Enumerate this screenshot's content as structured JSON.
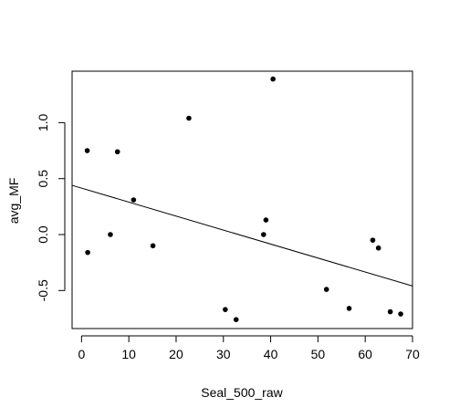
{
  "chart_data": {
    "type": "scatter",
    "title": "",
    "xlabel": "Seal_500_raw",
    "ylabel": "avg_MF",
    "xlim": [
      -2,
      70
    ],
    "ylim": [
      -0.84,
      1.46
    ],
    "x_ticks": [
      0,
      10,
      20,
      30,
      40,
      50,
      60,
      70
    ],
    "y_ticks": [
      -0.5,
      0.0,
      0.5,
      1.0
    ],
    "x_tick_labels": [
      "0",
      "10",
      "20",
      "30",
      "40",
      "50",
      "60",
      "70"
    ],
    "y_tick_labels": [
      "-0.5",
      "0.0",
      "0.5",
      "1.0"
    ],
    "grid": false,
    "points": [
      {
        "x": 1.2,
        "y": 0.75
      },
      {
        "x": 1.3,
        "y": -0.16
      },
      {
        "x": 6.1,
        "y": 0.0
      },
      {
        "x": 7.6,
        "y": 0.74
      },
      {
        "x": 11.0,
        "y": 0.31
      },
      {
        "x": 15.1,
        "y": -0.1
      },
      {
        "x": 22.7,
        "y": 1.04
      },
      {
        "x": 30.4,
        "y": -0.67
      },
      {
        "x": 32.7,
        "y": -0.76
      },
      {
        "x": 38.5,
        "y": 0.0
      },
      {
        "x": 39.0,
        "y": 0.13
      },
      {
        "x": 40.5,
        "y": 1.39
      },
      {
        "x": 51.8,
        "y": -0.49
      },
      {
        "x": 56.6,
        "y": -0.66
      },
      {
        "x": 61.6,
        "y": -0.05
      },
      {
        "x": 62.8,
        "y": -0.12
      },
      {
        "x": 65.3,
        "y": -0.69
      },
      {
        "x": 67.5,
        "y": -0.71
      }
    ],
    "fit_line": {
      "x": [
        -2,
        70
      ],
      "y": [
        0.44,
        -0.46
      ]
    },
    "colors": {
      "points": "#000000",
      "line": "#000000",
      "axes": "#000000"
    }
  }
}
